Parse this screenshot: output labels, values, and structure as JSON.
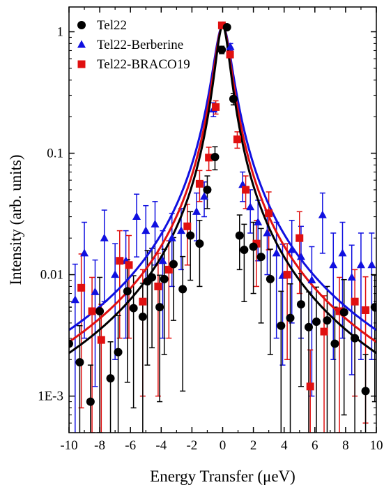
{
  "chart_data": {
    "type": "scatter",
    "title": "",
    "xlabel": "Energy Transfer (μeV)",
    "ylabel": "Intensity (arb. units)",
    "xlim": [
      -10,
      10
    ],
    "ylim": [
      0.0005,
      1.6
    ],
    "yscale": "log",
    "grid": false,
    "legend_position": "top-left",
    "x_ticks": [
      -10,
      -8,
      -6,
      -4,
      -2,
      0,
      2,
      4,
      6,
      8,
      10
    ],
    "x_tick_labels": [
      "-10",
      "-8",
      "-6",
      "-4",
      "-2",
      "0",
      "2",
      "4",
      "6",
      "8",
      "10"
    ],
    "y_ticks": [
      0.001,
      0.01,
      0.1,
      1
    ],
    "y_tick_labels": [
      "1E-3",
      "0.01",
      "0.1",
      "1"
    ],
    "series": [
      {
        "name": "Tel22",
        "color": "#000000",
        "marker": "circle",
        "fit": {
          "type": "lorentzian",
          "amplitude": 1.12,
          "hwhm": 0.45
        },
        "points": [
          [
            -10.0,
            0.0027,
            0.0027
          ],
          [
            -9.3,
            0.0019,
            0.0019
          ],
          [
            -8.6,
            0.0009,
            0.0009
          ],
          [
            -8.0,
            0.005,
            0.0045
          ],
          [
            -7.3,
            0.0014,
            0.0014
          ],
          [
            -6.8,
            0.0023,
            0.0023
          ],
          [
            -6.2,
            0.0073,
            0.006
          ],
          [
            -5.8,
            0.0053,
            0.0045
          ],
          [
            -5.2,
            0.0045,
            0.004
          ],
          [
            -4.9,
            0.0088,
            0.007
          ],
          [
            -4.6,
            0.0095,
            0.007
          ],
          [
            -4.1,
            0.0054,
            0.0045
          ],
          [
            -3.8,
            0.0092,
            0.007
          ],
          [
            -3.2,
            0.0122,
            0.008
          ],
          [
            -2.6,
            0.0076,
            0.0065
          ],
          [
            -2.1,
            0.021,
            0.012
          ],
          [
            -1.5,
            0.018,
            0.01
          ],
          [
            -1.0,
            0.05,
            0.015
          ],
          [
            -0.5,
            0.093,
            0.02
          ],
          [
            -0.06,
            0.71,
            0.05
          ],
          [
            0.28,
            1.09,
            0.05
          ],
          [
            0.7,
            0.28,
            0.03
          ],
          [
            1.1,
            0.021,
            0.01
          ],
          [
            1.4,
            0.016,
            0.01
          ],
          [
            2.0,
            0.017,
            0.01
          ],
          [
            2.5,
            0.014,
            0.01
          ],
          [
            3.1,
            0.0092,
            0.007
          ],
          [
            3.8,
            0.0038,
            0.0035
          ],
          [
            4.4,
            0.0044,
            0.004
          ],
          [
            5.1,
            0.0057,
            0.0045
          ],
          [
            5.6,
            0.0037,
            0.0035
          ],
          [
            6.1,
            0.0041,
            0.0038
          ],
          [
            6.8,
            0.0042,
            0.0038
          ],
          [
            7.3,
            0.0027,
            0.0027
          ],
          [
            7.9,
            0.0049,
            0.0042
          ],
          [
            8.6,
            0.003,
            0.0028
          ],
          [
            9.3,
            0.0011,
            0.0011
          ],
          [
            9.9,
            0.0054,
            0.0045
          ]
        ]
      },
      {
        "name": "Tel22-Berberine",
        "color": "#1010e0",
        "marker": "triangle",
        "fit": {
          "type": "lorentzian",
          "amplitude": 1.12,
          "hwhm": 0.56
        },
        "points": [
          [
            -9.6,
            0.0062,
            0.006
          ],
          [
            -9.0,
            0.015,
            0.012
          ],
          [
            -8.3,
            0.0072,
            0.006
          ],
          [
            -7.7,
            0.02,
            0.014
          ],
          [
            -7.0,
            0.01,
            0.008
          ],
          [
            -6.3,
            0.013,
            0.01
          ],
          [
            -5.6,
            0.03,
            0.016
          ],
          [
            -5.0,
            0.023,
            0.014
          ],
          [
            -4.4,
            0.026,
            0.014
          ],
          [
            -3.9,
            0.013,
            0.01
          ],
          [
            -3.3,
            0.02,
            0.012
          ],
          [
            -2.7,
            0.023,
            0.012
          ],
          [
            -1.7,
            0.033,
            0.014
          ],
          [
            -1.2,
            0.044,
            0.014
          ],
          [
            -0.6,
            0.23,
            0.03
          ],
          [
            0.02,
            1.12,
            0.05
          ],
          [
            0.5,
            0.75,
            0.05
          ],
          [
            1.3,
            0.055,
            0.015
          ],
          [
            1.8,
            0.036,
            0.014
          ],
          [
            2.3,
            0.027,
            0.014
          ],
          [
            2.9,
            0.022,
            0.012
          ],
          [
            3.5,
            0.015,
            0.012
          ],
          [
            3.9,
            0.0098,
            0.008
          ],
          [
            4.5,
            0.016,
            0.012
          ],
          [
            5.1,
            0.014,
            0.011
          ],
          [
            5.8,
            0.009,
            0.008
          ],
          [
            6.5,
            0.031,
            0.016
          ],
          [
            7.2,
            0.012,
            0.01
          ],
          [
            7.8,
            0.015,
            0.012
          ],
          [
            8.4,
            0.0095,
            0.008
          ],
          [
            9.0,
            0.012,
            0.01
          ],
          [
            9.7,
            0.012,
            0.01
          ]
        ]
      },
      {
        "name": "Tel22-BRACO19",
        "color": "#e01010",
        "marker": "square",
        "fit": {
          "type": "lorentzian",
          "amplitude": 1.12,
          "hwhm": 0.5
        },
        "points": [
          [
            -9.2,
            0.0078,
            0.007
          ],
          [
            -8.5,
            0.005,
            0.0045
          ],
          [
            -7.9,
            0.0029,
            0.0028
          ],
          [
            -6.7,
            0.013,
            0.01
          ],
          [
            -6.1,
            0.012,
            0.009
          ],
          [
            -5.2,
            0.006,
            0.005
          ],
          [
            -4.2,
            0.008,
            0.007
          ],
          [
            -3.5,
            0.011,
            0.008
          ],
          [
            -2.3,
            0.025,
            0.013
          ],
          [
            -1.5,
            0.056,
            0.016
          ],
          [
            -0.9,
            0.092,
            0.02
          ],
          [
            -0.45,
            0.24,
            0.03
          ],
          [
            -0.05,
            1.13,
            0.05
          ],
          [
            0.48,
            0.65,
            0.04
          ],
          [
            0.95,
            0.13,
            0.02
          ],
          [
            1.5,
            0.05,
            0.015
          ],
          [
            2.2,
            0.018,
            0.01
          ],
          [
            3.0,
            0.032,
            0.016
          ],
          [
            4.2,
            0.01,
            0.008
          ],
          [
            5.0,
            0.02,
            0.013
          ],
          [
            5.7,
            0.0012,
            0.0012
          ],
          [
            6.6,
            0.0034,
            0.0033
          ],
          [
            7.6,
            0.005,
            0.0045
          ],
          [
            8.6,
            0.006,
            0.005
          ],
          [
            9.3,
            0.0051,
            0.0045
          ]
        ]
      }
    ]
  }
}
